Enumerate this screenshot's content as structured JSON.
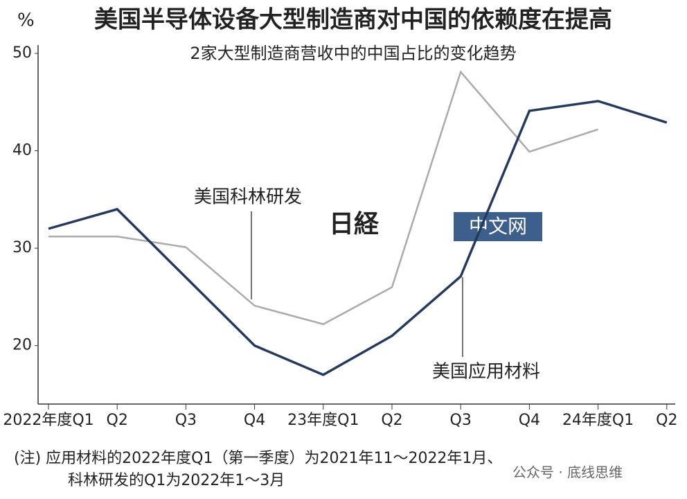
{
  "chart_data": {
    "type": "line",
    "title": "美国半导体设备大型制造商对中国的依赖度在提高",
    "subtitle": "2家大型制造商营收中的中国占比的变化趋势",
    "y_unit": "%",
    "categories": [
      "2022年度Q1",
      "Q2",
      "Q3",
      "Q4",
      "23年度Q1",
      "Q2",
      "Q3",
      "Q4",
      "24年度Q1",
      "Q2"
    ],
    "series": [
      {
        "name": "美国应用材料",
        "color": "#23395d",
        "values": [
          32,
          34,
          27,
          20,
          17,
          21,
          27.1,
          44.1,
          45.1,
          42.9
        ]
      },
      {
        "name": "美国科林研发",
        "color": "#aaaaaa",
        "values": [
          31.2,
          31.2,
          30.1,
          24.1,
          22.2,
          26,
          48.1,
          39.9,
          42.2,
          null
        ]
      }
    ],
    "ylim": [
      14,
      50
    ],
    "yticks": [
      20,
      30,
      40,
      50
    ],
    "note": [
      "(注) 应用材料的2022年度Q1（第一季度）为2021年11～2022年1月、",
      "科林研发的Q1为2022年1～3月"
    ],
    "watermark": {
      "logo": "日経",
      "box": "中文网",
      "footer": "公众号 · 底线思维"
    }
  }
}
